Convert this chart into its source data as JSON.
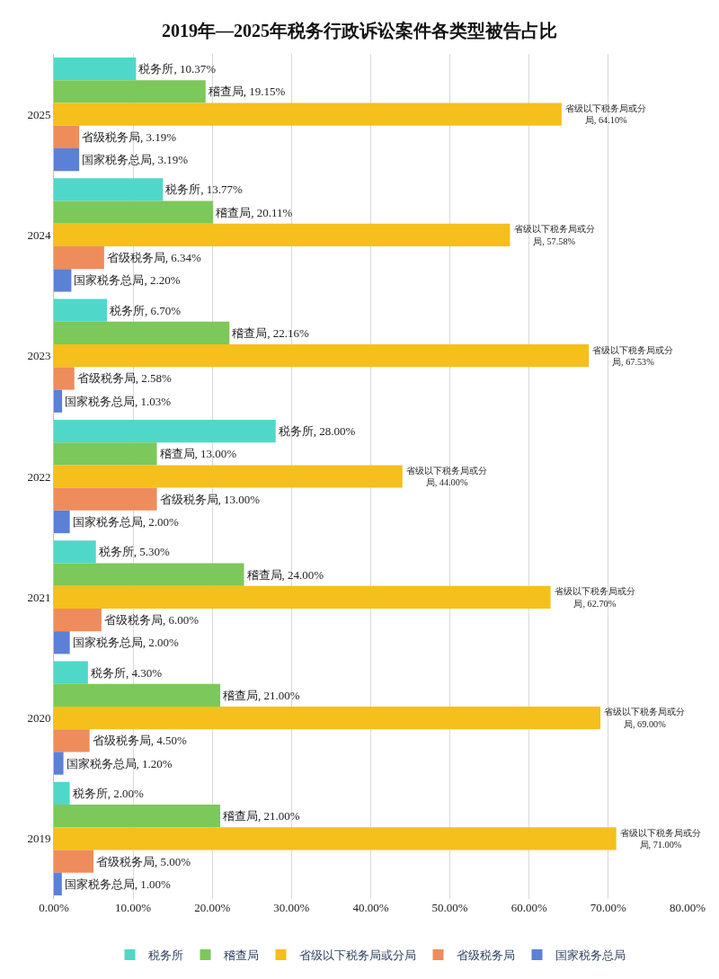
{
  "chart_data": {
    "type": "bar",
    "orientation": "horizontal",
    "title": "2019年—2025年税务行政诉讼案件各类型被告占比",
    "categories": [
      "2025",
      "2024",
      "2023",
      "2022",
      "2021",
      "2020",
      "2019"
    ],
    "series": [
      {
        "name": "税务所",
        "color": "#4fd8c9",
        "values": [
          10.37,
          13.77,
          6.7,
          28.0,
          5.3,
          4.3,
          2.0
        ],
        "value_labels": [
          "税务所, 10.37%",
          "税务所, 13.77%",
          "税务所, 6.70%",
          "税务所, 28.00%",
          "税务所, 5.30%",
          "税务所, 4.30%",
          "税务所, 2.00%"
        ]
      },
      {
        "name": "稽查局",
        "color": "#7cc85a",
        "values": [
          19.15,
          20.11,
          22.16,
          13.0,
          24.0,
          21.0,
          21.0
        ],
        "value_labels": [
          "稽查局, 19.15%",
          "稽查局, 20.11%",
          "稽查局, 22.16%",
          "稽查局, 13.00%",
          "稽查局, 24.00%",
          "稽查局, 21.00%",
          "稽查局, 21.00%"
        ]
      },
      {
        "name": "省级以下税务局或分局",
        "color": "#f5bf1c",
        "values": [
          64.1,
          57.58,
          67.53,
          44.0,
          62.7,
          69.0,
          71.0
        ],
        "value_labels": [
          "省级以下税务局或分局, 64.10%",
          "省级以下税务局或分局, 57.58%",
          "省级以下税务局或分局, 67.53%",
          "省级以下税务局或分局, 44.00%",
          "省级以下税务局或分局, 62.70%",
          "省级以下税务局或分局, 69.00%",
          "省级以下税务局或分局, 71.00%"
        ]
      },
      {
        "name": "省级税务局",
        "color": "#ee8c5c",
        "values": [
          3.19,
          6.34,
          2.58,
          13.0,
          6.0,
          4.5,
          5.0
        ],
        "value_labels": [
          "省级税务局, 3.19%",
          "省级税务局, 6.34%",
          "省级税务局, 2.58%",
          "省级税务局, 13.00%",
          "省级税务局, 6.00%",
          "省级税务局, 4.50%",
          "省级税务局, 5.00%"
        ]
      },
      {
        "name": "国家税务总局",
        "color": "#5b80d8",
        "values": [
          3.19,
          2.2,
          1.03,
          2.0,
          2.0,
          1.2,
          1.0
        ],
        "value_labels": [
          "国家税务总局, 3.19%",
          "国家税务总局, 2.20%",
          "国家税务总局, 1.03%",
          "国家税务总局, 2.00%",
          "国家税务总局, 2.00%",
          "国家税务总局, 1.20%",
          "国家税务总局, 1.00%"
        ]
      }
    ],
    "xlim": [
      0,
      80
    ],
    "xticks": [
      {
        "value": 0,
        "label": "0.00%"
      },
      {
        "value": 10,
        "label": "10.00%"
      },
      {
        "value": 20,
        "label": "20.00%"
      },
      {
        "value": 30,
        "label": "30.00%"
      },
      {
        "value": 40,
        "label": "40.00%"
      },
      {
        "value": 50,
        "label": "50.00%"
      },
      {
        "value": 60,
        "label": "60.00%"
      },
      {
        "value": 70,
        "label": "70.00%"
      },
      {
        "value": 80,
        "label": "80.00%"
      }
    ],
    "grid": "x",
    "legend": "bottom"
  }
}
